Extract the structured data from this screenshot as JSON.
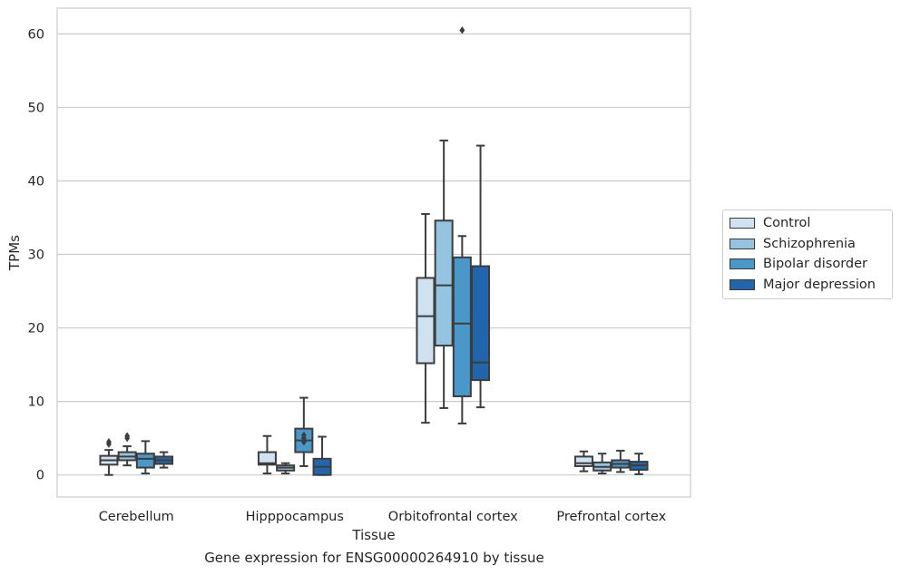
{
  "chart_data": {
    "type": "box",
    "title": "",
    "xlabel": "Tissue",
    "ylabel": "TPMs",
    "ylim": [
      -3,
      63.5
    ],
    "yticks": [
      0,
      10,
      20,
      30,
      40,
      50,
      60
    ],
    "grid": true,
    "legend_placement": "right, outside plot",
    "categories": [
      "Cerebellum",
      "Hipppocampus",
      "Orbitofrontal cortex",
      "Prefrontal cortex"
    ],
    "series": [
      {
        "name": "Control",
        "color": "#d0e1f2",
        "boxes": [
          {
            "whislo": 0.0,
            "q1": 1.4,
            "med": 2.0,
            "q3": 2.6,
            "whishi": 3.4,
            "fliers": [
              4.2,
              4.5
            ]
          },
          {
            "whislo": 0.2,
            "q1": 1.4,
            "med": 1.6,
            "q3": 3.1,
            "whishi": 5.3,
            "fliers": []
          },
          {
            "whislo": 7.1,
            "q1": 15.2,
            "med": 21.6,
            "q3": 26.8,
            "whishi": 35.5,
            "fliers": []
          },
          {
            "whislo": 0.5,
            "q1": 1.2,
            "med": 1.6,
            "q3": 2.5,
            "whishi": 3.2,
            "fliers": []
          }
        ]
      },
      {
        "name": "Schizophrenia",
        "color": "#94c4df",
        "boxes": [
          {
            "whislo": 1.3,
            "q1": 2.0,
            "med": 2.5,
            "q3": 3.1,
            "whishi": 3.9,
            "fliers": [
              5.0,
              5.3
            ]
          },
          {
            "whislo": 0.2,
            "q1": 0.6,
            "med": 1.0,
            "q3": 1.3,
            "whishi": 1.6,
            "fliers": []
          },
          {
            "whislo": 9.1,
            "q1": 17.6,
            "med": 25.8,
            "q3": 34.6,
            "whishi": 45.5,
            "fliers": []
          },
          {
            "whislo": 0.2,
            "q1": 0.6,
            "med": 1.1,
            "q3": 1.7,
            "whishi": 2.9,
            "fliers": []
          }
        ]
      },
      {
        "name": "Bipolar disorder",
        "color": "#4a98c9",
        "boxes": [
          {
            "whislo": 0.2,
            "q1": 1.0,
            "med": 2.2,
            "q3": 2.9,
            "whishi": 4.6,
            "fliers": []
          },
          {
            "whislo": 1.2,
            "q1": 3.1,
            "med": 4.7,
            "q3": 6.3,
            "whishi": 10.5,
            "fliers": [
              4.5,
              5.0,
              5.4
            ]
          },
          {
            "whislo": 7.0,
            "q1": 10.7,
            "med": 20.6,
            "q3": 29.6,
            "whishi": 32.5,
            "fliers": [
              60.5
            ]
          },
          {
            "whislo": 0.4,
            "q1": 1.0,
            "med": 1.5,
            "q3": 2.0,
            "whishi": 3.3,
            "fliers": []
          }
        ]
      },
      {
        "name": "Major depression",
        "color": "#2166ac",
        "boxes": [
          {
            "whislo": 1.0,
            "q1": 1.5,
            "med": 2.0,
            "q3": 2.5,
            "whishi": 3.1,
            "fliers": []
          },
          {
            "whislo": 0.0,
            "q1": 0.0,
            "med": 1.1,
            "q3": 2.2,
            "whishi": 5.2,
            "fliers": []
          },
          {
            "whislo": 9.2,
            "q1": 12.9,
            "med": 15.3,
            "q3": 28.4,
            "whishi": 44.8,
            "fliers": []
          },
          {
            "whislo": 0.1,
            "q1": 0.7,
            "med": 1.3,
            "q3": 1.8,
            "whishi": 2.9,
            "fliers": []
          }
        ]
      }
    ]
  },
  "caption": "Gene expression for ENSG00000264910 by tissue"
}
